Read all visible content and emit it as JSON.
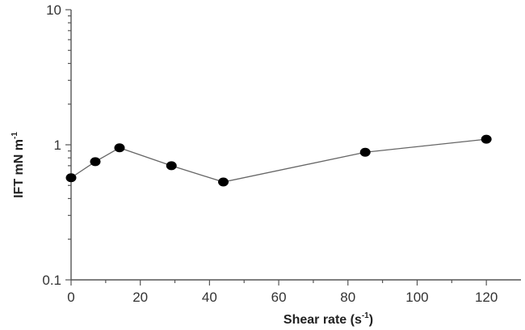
{
  "chart_data": {
    "type": "line",
    "title": "",
    "xlabel": {
      "main": "Shear rate (s",
      "sup": "-1",
      "tail": ")"
    },
    "ylabel": {
      "main": "IFT mN m",
      "sup": "-1"
    },
    "x_ticks": [
      0,
      20,
      40,
      60,
      80,
      100,
      120
    ],
    "y_ticks": [
      0.1,
      1,
      10
    ],
    "y_tick_labels": [
      "0.1",
      "1",
      "10"
    ],
    "xlim": [
      0,
      130
    ],
    "ylim": [
      0.1,
      10
    ],
    "y_scale": "log",
    "series": [
      {
        "name": "IFT",
        "x": [
          0,
          7,
          14,
          29,
          44,
          85,
          120
        ],
        "y": [
          0.57,
          0.75,
          0.95,
          0.7,
          0.53,
          0.88,
          1.1
        ],
        "color": "#000000",
        "line_color": "#666666"
      }
    ]
  }
}
